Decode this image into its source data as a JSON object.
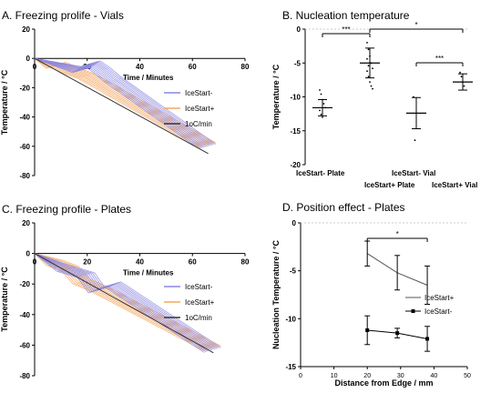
{
  "chart_data": [
    {
      "id": "A",
      "type": "line",
      "title": "A. Freezing prolife - Vials",
      "xlabel": "Time / Minutes",
      "ylabel": "Temperature / °C",
      "xlim": [
        0,
        80
      ],
      "ylim": [
        -80,
        20
      ],
      "xticks": [
        0,
        20,
        40,
        60,
        80
      ],
      "yticks": [
        20,
        0,
        -20,
        -40,
        -60,
        -80
      ],
      "legend_position": "right",
      "colors": {
        "IceStart-": "#8a86e0",
        "IceStart+": "#f5a55e",
        "1oC/min": "#333333"
      },
      "series": [
        {
          "name": "IceStart-",
          "x": [
            0,
            18,
            22,
            26,
            30,
            66
          ],
          "y": [
            0,
            -8,
            -3,
            -8,
            -14,
            -60
          ]
        },
        {
          "name": "IceStart+",
          "x": [
            0,
            8,
            9,
            14,
            20,
            28,
            66
          ],
          "y": [
            0,
            -5,
            -4,
            -8,
            -12,
            -20,
            -59
          ]
        },
        {
          "name": "1oC/min",
          "x": [
            0,
            66
          ],
          "y": [
            0,
            -65
          ]
        }
      ]
    },
    {
      "id": "B",
      "type": "scatter",
      "title": "B. Nucleation temperature",
      "ylabel": "Temperature / °C",
      "ylim": [
        -20,
        0
      ],
      "yticks": [
        0,
        -5,
        -10,
        -15,
        -20
      ],
      "categories": [
        "IceStart- Plate",
        "IceStart+ Plate",
        "IceStart- Vial",
        "IceStart+ Vial"
      ],
      "means": [
        -11.6,
        -5.0,
        -12.4,
        -7.8
      ],
      "sd": [
        1.2,
        2.2,
        2.3,
        1.2
      ],
      "points": [
        [
          -9,
          -9.6,
          -10.4,
          -11,
          -11.6,
          -12,
          -12.6,
          -13
        ],
        [
          -2,
          -3,
          -4,
          -5,
          -5.8,
          -6.2,
          -7,
          -7.8,
          -8.4,
          -8.8,
          -4.4,
          -5.4
        ],
        [
          -10,
          -16.4
        ],
        [
          -6.4,
          -7.0,
          -7.8,
          -8.4
        ]
      ],
      "annotations": [
        "***",
        "*",
        "***"
      ]
    },
    {
      "id": "C",
      "type": "line",
      "title": "C. Freezing profile - Plates",
      "xlabel": "Time / Minutes",
      "ylabel": "Temperature / °C",
      "xlim": [
        0,
        80
      ],
      "ylim": [
        -80,
        20
      ],
      "xticks": [
        0,
        20,
        40,
        60,
        80
      ],
      "yticks": [
        20,
        0,
        -20,
        -40,
        -60,
        -80
      ],
      "legend_position": "right",
      "colors": {
        "IceStart-": "#8a86e0",
        "IceStart+": "#f5a55e",
        "1oC/min": "#333333"
      },
      "series": [
        {
          "name": "IceStart-",
          "x": [
            0,
            12,
            20,
            24,
            30,
            68
          ],
          "y": [
            0,
            -10,
            -14,
            -24,
            -20,
            -63
          ]
        },
        {
          "name": "IceStart+",
          "x": [
            0,
            8,
            14,
            18,
            26,
            68
          ],
          "y": [
            0,
            -6,
            -10,
            -18,
            -24,
            -62
          ]
        },
        {
          "name": "1oC/min",
          "x": [
            0,
            68
          ],
          "y": [
            0,
            -65
          ]
        }
      ]
    },
    {
      "id": "D",
      "type": "line",
      "title": "D. Position effect - Plates",
      "xlabel": "Distance from Edge / mm",
      "ylabel": "Nucleation Temperature / °C",
      "xlim": [
        0,
        50
      ],
      "ylim": [
        -15,
        0
      ],
      "xticks": [
        0,
        10,
        20,
        30,
        40,
        50
      ],
      "yticks": [
        0,
        -5,
        -10,
        -15
      ],
      "legend_position": "right",
      "annotations": [
        "*"
      ],
      "series": [
        {
          "name": "IceStart+",
          "x": [
            20,
            29,
            38
          ],
          "y": [
            -3.2,
            -5.2,
            -6.5
          ],
          "err": [
            1.3,
            1.8,
            2.0
          ]
        },
        {
          "name": "IceStart-",
          "x": [
            20,
            29,
            38
          ],
          "y": [
            -11.2,
            -11.5,
            -12.1
          ],
          "err": [
            1.5,
            0.5,
            1.3
          ]
        }
      ]
    }
  ]
}
